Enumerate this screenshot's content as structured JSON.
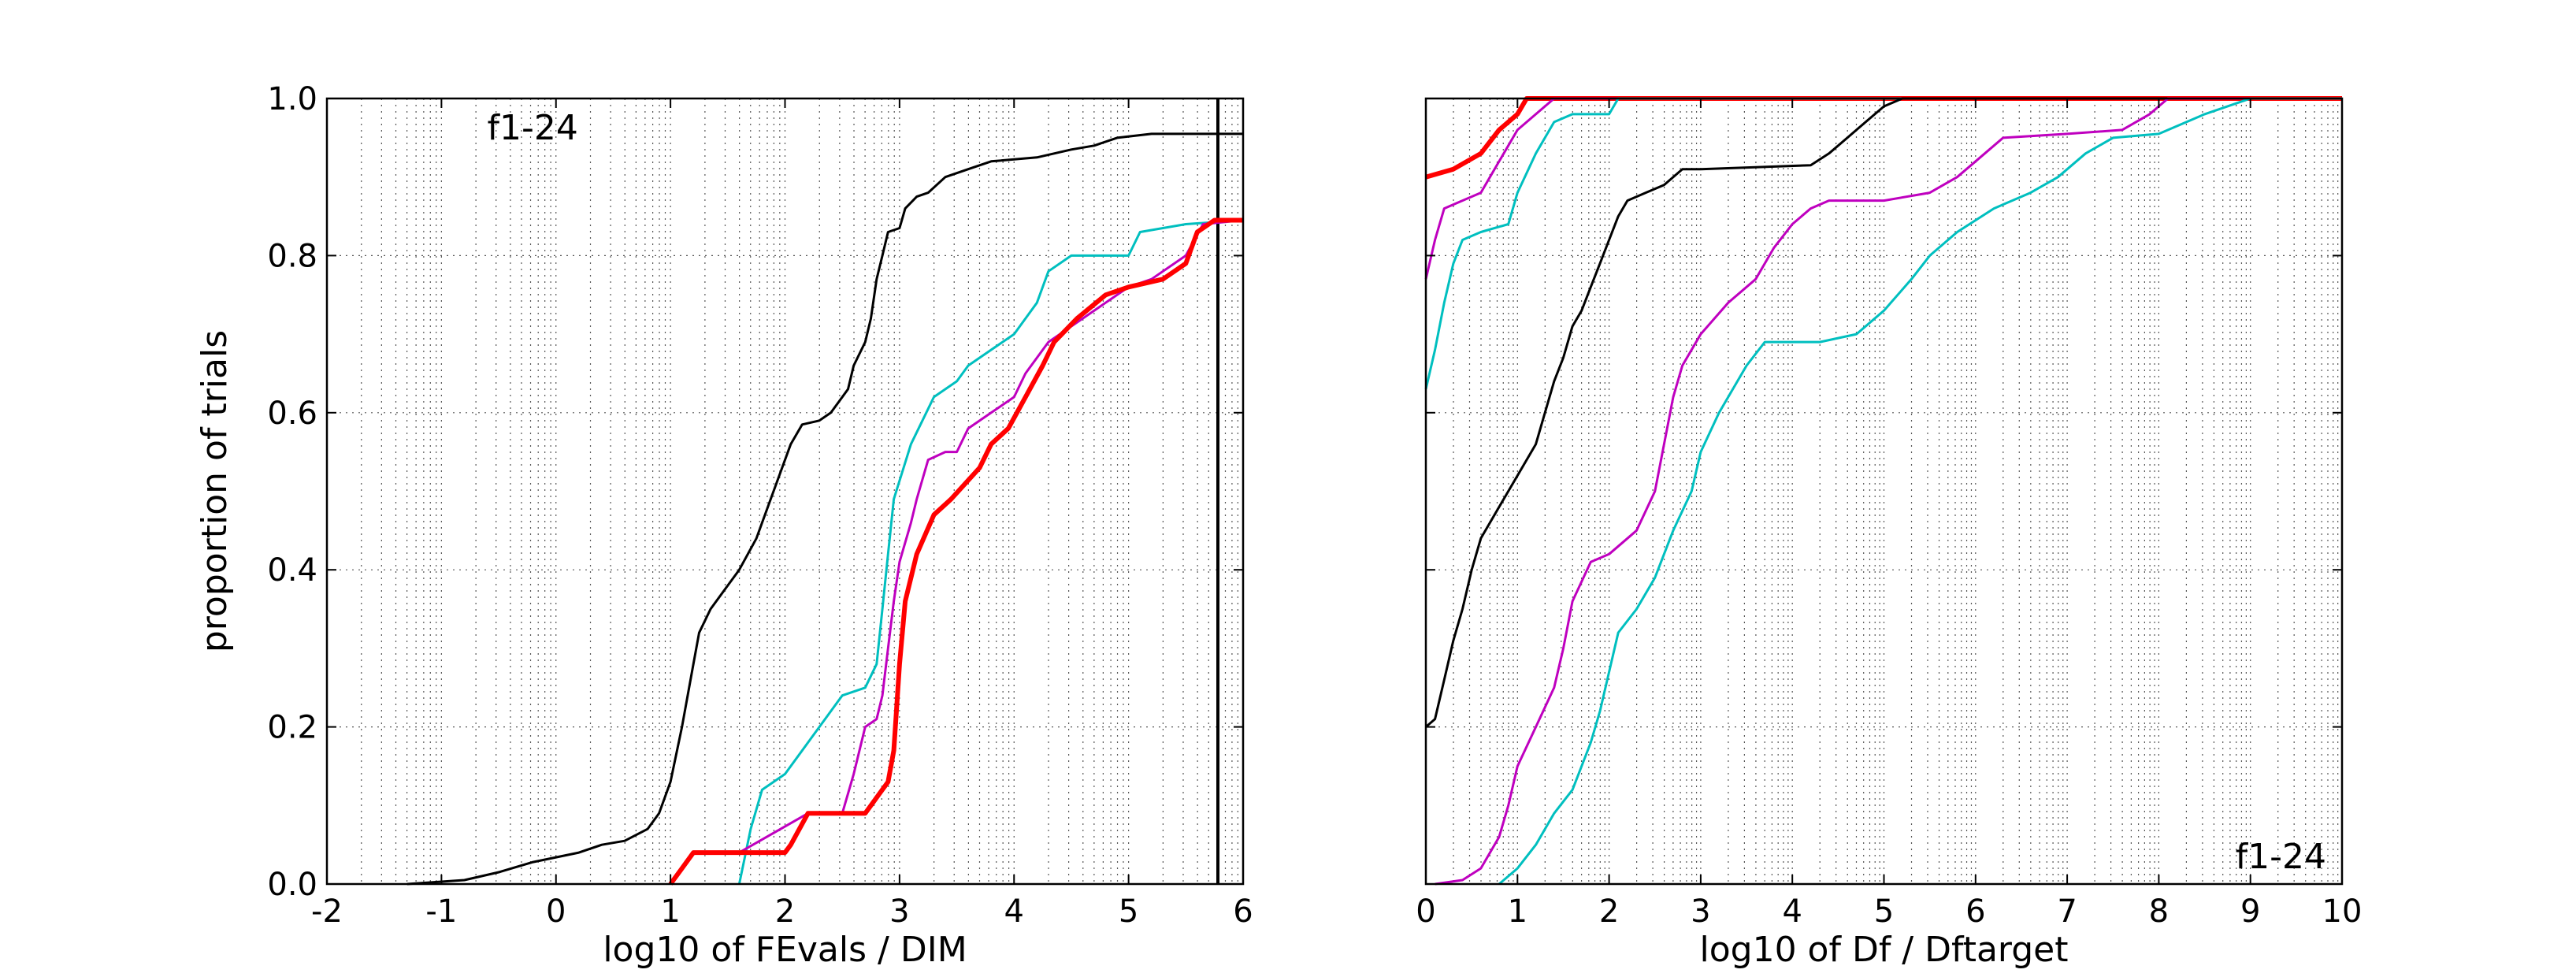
{
  "chart_data": [
    {
      "type": "line",
      "title": "",
      "annotation": "f1-24",
      "annotation_position": "top-center",
      "xlabel": "log10 of FEvals / DIM",
      "ylabel": "proportion of trials",
      "xlim": [
        -2,
        6
      ],
      "ylim": [
        0,
        1
      ],
      "xticks": [
        -2,
        -1,
        0,
        1,
        2,
        3,
        4,
        5,
        6
      ],
      "xtick_labels": [
        "-2",
        "-1",
        "0",
        "1",
        "2",
        "3",
        "4",
        "5",
        "6"
      ],
      "yticks": [
        0,
        0.2,
        0.4,
        0.6,
        0.8,
        1
      ],
      "ytick_labels": [
        "0.0",
        "0.2",
        "0.4",
        "0.6",
        "0.8",
        "1.0"
      ],
      "grid": true,
      "vertical_line": {
        "x": 5.78,
        "color": "#000000"
      },
      "series": [
        {
          "color": "#000000",
          "width": 3,
          "points": [
            [
              -1.3,
              0.0
            ],
            [
              -0.8,
              0.005
            ],
            [
              -0.5,
              0.015
            ],
            [
              -0.2,
              0.028
            ],
            [
              0.2,
              0.04
            ],
            [
              0.4,
              0.05
            ],
            [
              0.6,
              0.055
            ],
            [
              0.8,
              0.07
            ],
            [
              0.9,
              0.09
            ],
            [
              1.0,
              0.13
            ],
            [
              1.1,
              0.2
            ],
            [
              1.2,
              0.28
            ],
            [
              1.25,
              0.32
            ],
            [
              1.35,
              0.35
            ],
            [
              1.5,
              0.38
            ],
            [
              1.6,
              0.4
            ],
            [
              1.75,
              0.44
            ],
            [
              1.85,
              0.48
            ],
            [
              1.95,
              0.52
            ],
            [
              2.05,
              0.56
            ],
            [
              2.15,
              0.585
            ],
            [
              2.3,
              0.59
            ],
            [
              2.4,
              0.6
            ],
            [
              2.55,
              0.63
            ],
            [
              2.6,
              0.66
            ],
            [
              2.7,
              0.69
            ],
            [
              2.75,
              0.72
            ],
            [
              2.8,
              0.77
            ],
            [
              2.85,
              0.8
            ],
            [
              2.9,
              0.83
            ],
            [
              3.0,
              0.835
            ],
            [
              3.05,
              0.86
            ],
            [
              3.15,
              0.875
            ],
            [
              3.25,
              0.88
            ],
            [
              3.4,
              0.9
            ],
            [
              3.6,
              0.91
            ],
            [
              3.8,
              0.92
            ],
            [
              4.2,
              0.925
            ],
            [
              4.5,
              0.935
            ],
            [
              4.7,
              0.94
            ],
            [
              4.9,
              0.95
            ],
            [
              5.2,
              0.955
            ],
            [
              6.0,
              0.955
            ]
          ]
        },
        {
          "color": "#00bfbf",
          "width": 3,
          "points": [
            [
              1.6,
              0.0
            ],
            [
              1.7,
              0.07
            ],
            [
              1.8,
              0.12
            ],
            [
              1.9,
              0.13
            ],
            [
              2.0,
              0.14
            ],
            [
              2.2,
              0.18
            ],
            [
              2.35,
              0.21
            ],
            [
              2.5,
              0.24
            ],
            [
              2.7,
              0.25
            ],
            [
              2.8,
              0.28
            ],
            [
              2.85,
              0.35
            ],
            [
              2.9,
              0.42
            ],
            [
              2.95,
              0.49
            ],
            [
              3.1,
              0.56
            ],
            [
              3.3,
              0.62
            ],
            [
              3.5,
              0.64
            ],
            [
              3.6,
              0.66
            ],
            [
              3.8,
              0.68
            ],
            [
              4.0,
              0.7
            ],
            [
              4.2,
              0.74
            ],
            [
              4.3,
              0.78
            ],
            [
              4.5,
              0.8
            ],
            [
              5.0,
              0.8
            ],
            [
              5.1,
              0.83
            ],
            [
              5.5,
              0.84
            ],
            [
              6.0,
              0.845
            ]
          ]
        },
        {
          "color": "#bf00bf",
          "width": 3,
          "points": [
            [
              1.6,
              0.04
            ],
            [
              2.2,
              0.09
            ],
            [
              2.5,
              0.09
            ],
            [
              2.6,
              0.14
            ],
            [
              2.7,
              0.2
            ],
            [
              2.8,
              0.21
            ],
            [
              2.85,
              0.24
            ],
            [
              2.9,
              0.3
            ],
            [
              2.95,
              0.36
            ],
            [
              3.0,
              0.41
            ],
            [
              3.1,
              0.46
            ],
            [
              3.15,
              0.49
            ],
            [
              3.25,
              0.54
            ],
            [
              3.4,
              0.55
            ],
            [
              3.5,
              0.55
            ],
            [
              3.6,
              0.58
            ],
            [
              3.8,
              0.6
            ],
            [
              4.0,
              0.62
            ],
            [
              4.1,
              0.65
            ],
            [
              4.3,
              0.69
            ],
            [
              4.6,
              0.72
            ],
            [
              4.8,
              0.74
            ],
            [
              5.0,
              0.76
            ],
            [
              5.2,
              0.77
            ],
            [
              5.5,
              0.8
            ],
            [
              5.65,
              0.84
            ],
            [
              6.0,
              0.845
            ]
          ]
        },
        {
          "color": "#ff0000",
          "width": 6,
          "points": [
            [
              1.0,
              0.0
            ],
            [
              1.1,
              0.02
            ],
            [
              1.2,
              0.04
            ],
            [
              2.0,
              0.04
            ],
            [
              2.05,
              0.05
            ],
            [
              2.2,
              0.09
            ],
            [
              2.7,
              0.09
            ],
            [
              2.8,
              0.11
            ],
            [
              2.9,
              0.13
            ],
            [
              2.95,
              0.17
            ],
            [
              3.0,
              0.28
            ],
            [
              3.05,
              0.36
            ],
            [
              3.15,
              0.42
            ],
            [
              3.3,
              0.47
            ],
            [
              3.45,
              0.49
            ],
            [
              3.7,
              0.53
            ],
            [
              3.8,
              0.56
            ],
            [
              3.95,
              0.58
            ],
            [
              4.1,
              0.62
            ],
            [
              4.25,
              0.66
            ],
            [
              4.35,
              0.69
            ],
            [
              4.55,
              0.72
            ],
            [
              4.8,
              0.75
            ],
            [
              5.0,
              0.76
            ],
            [
              5.3,
              0.77
            ],
            [
              5.5,
              0.79
            ],
            [
              5.6,
              0.83
            ],
            [
              5.75,
              0.845
            ],
            [
              6.0,
              0.845
            ]
          ]
        }
      ]
    },
    {
      "type": "line",
      "title": "",
      "annotation": "f1-24",
      "annotation_position": "bottom-right",
      "xlabel": "log10 of Df / Dftarget",
      "ylabel": "",
      "xlim": [
        0,
        10
      ],
      "ylim": [
        0,
        1
      ],
      "xticks": [
        0,
        1,
        2,
        3,
        4,
        5,
        6,
        7,
        8,
        9,
        10
      ],
      "xtick_labels": [
        "0",
        "1",
        "2",
        "3",
        "4",
        "5",
        "6",
        "7",
        "8",
        "9",
        "10"
      ],
      "yticks": [
        0,
        0.2,
        0.4,
        0.6,
        0.8,
        1
      ],
      "ytick_labels": [],
      "grid": true,
      "series": [
        {
          "color": "#ff0000",
          "width": 6,
          "points": [
            [
              0,
              0.9
            ],
            [
              0.3,
              0.91
            ],
            [
              0.6,
              0.93
            ],
            [
              0.8,
              0.96
            ],
            [
              1.0,
              0.98
            ],
            [
              1.1,
              1.0
            ],
            [
              10,
              1.0
            ]
          ]
        },
        {
          "color": "#bf00bf",
          "width": 3,
          "points": [
            [
              0,
              0.77
            ],
            [
              0.1,
              0.82
            ],
            [
              0.2,
              0.86
            ],
            [
              0.4,
              0.87
            ],
            [
              0.6,
              0.88
            ],
            [
              0.8,
              0.92
            ],
            [
              1.0,
              0.96
            ],
            [
              1.2,
              0.98
            ],
            [
              1.4,
              1.0
            ],
            [
              10,
              1.0
            ]
          ]
        },
        {
          "color": "#00bfbf",
          "width": 3,
          "points": [
            [
              0,
              0.63
            ],
            [
              0.1,
              0.68
            ],
            [
              0.2,
              0.74
            ],
            [
              0.3,
              0.79
            ],
            [
              0.4,
              0.82
            ],
            [
              0.6,
              0.83
            ],
            [
              0.9,
              0.84
            ],
            [
              1.0,
              0.88
            ],
            [
              1.2,
              0.93
            ],
            [
              1.4,
              0.97
            ],
            [
              1.6,
              0.98
            ],
            [
              2.0,
              0.98
            ],
            [
              2.1,
              1.0
            ],
            [
              10,
              1.0
            ]
          ]
        },
        {
          "color": "#000000",
          "width": 3,
          "points": [
            [
              0,
              0.2
            ],
            [
              0.1,
              0.21
            ],
            [
              0.2,
              0.26
            ],
            [
              0.3,
              0.31
            ],
            [
              0.4,
              0.35
            ],
            [
              0.5,
              0.4
            ],
            [
              0.6,
              0.44
            ],
            [
              0.8,
              0.48
            ],
            [
              1.0,
              0.52
            ],
            [
              1.2,
              0.56
            ],
            [
              1.3,
              0.6
            ],
            [
              1.4,
              0.64
            ],
            [
              1.5,
              0.67
            ],
            [
              1.6,
              0.71
            ],
            [
              1.7,
              0.73
            ],
            [
              1.8,
              0.76
            ],
            [
              1.9,
              0.79
            ],
            [
              2.0,
              0.82
            ],
            [
              2.1,
              0.85
            ],
            [
              2.2,
              0.87
            ],
            [
              2.4,
              0.88
            ],
            [
              2.6,
              0.89
            ],
            [
              2.8,
              0.91
            ],
            [
              3.0,
              0.91
            ],
            [
              4.2,
              0.915
            ],
            [
              4.4,
              0.93
            ],
            [
              4.6,
              0.95
            ],
            [
              4.8,
              0.97
            ],
            [
              5.0,
              0.99
            ],
            [
              5.2,
              1.0
            ],
            [
              10,
              1.0
            ]
          ]
        },
        {
          "color": "#bf00bf",
          "width": 3,
          "points": [
            [
              0.1,
              0.0
            ],
            [
              0.4,
              0.005
            ],
            [
              0.6,
              0.02
            ],
            [
              0.8,
              0.06
            ],
            [
              0.9,
              0.1
            ],
            [
              1.0,
              0.15
            ],
            [
              1.2,
              0.2
            ],
            [
              1.4,
              0.25
            ],
            [
              1.5,
              0.3
            ],
            [
              1.6,
              0.36
            ],
            [
              1.8,
              0.41
            ],
            [
              2.0,
              0.42
            ],
            [
              2.3,
              0.45
            ],
            [
              2.5,
              0.5
            ],
            [
              2.6,
              0.56
            ],
            [
              2.7,
              0.62
            ],
            [
              2.8,
              0.66
            ],
            [
              3.0,
              0.7
            ],
            [
              3.3,
              0.74
            ],
            [
              3.6,
              0.77
            ],
            [
              3.8,
              0.81
            ],
            [
              4.0,
              0.84
            ],
            [
              4.2,
              0.86
            ],
            [
              4.4,
              0.87
            ],
            [
              5.0,
              0.87
            ],
            [
              5.5,
              0.88
            ],
            [
              5.8,
              0.9
            ],
            [
              6.0,
              0.92
            ],
            [
              6.3,
              0.95
            ],
            [
              7.0,
              0.955
            ],
            [
              7.6,
              0.96
            ],
            [
              7.9,
              0.98
            ],
            [
              8.1,
              1.0
            ],
            [
              10,
              1.0
            ]
          ]
        },
        {
          "color": "#00bfbf",
          "width": 3,
          "points": [
            [
              0.8,
              0.0
            ],
            [
              1.0,
              0.02
            ],
            [
              1.2,
              0.05
            ],
            [
              1.4,
              0.09
            ],
            [
              1.6,
              0.12
            ],
            [
              1.8,
              0.18
            ],
            [
              1.9,
              0.22
            ],
            [
              2.0,
              0.27
            ],
            [
              2.1,
              0.32
            ],
            [
              2.3,
              0.35
            ],
            [
              2.5,
              0.39
            ],
            [
              2.7,
              0.45
            ],
            [
              2.9,
              0.5
            ],
            [
              3.0,
              0.55
            ],
            [
              3.2,
              0.6
            ],
            [
              3.5,
              0.66
            ],
            [
              3.7,
              0.69
            ],
            [
              4.3,
              0.69
            ],
            [
              4.7,
              0.7
            ],
            [
              5.0,
              0.73
            ],
            [
              5.3,
              0.77
            ],
            [
              5.5,
              0.8
            ],
            [
              5.8,
              0.83
            ],
            [
              6.2,
              0.86
            ],
            [
              6.6,
              0.88
            ],
            [
              6.9,
              0.9
            ],
            [
              7.2,
              0.93
            ],
            [
              7.5,
              0.95
            ],
            [
              8.0,
              0.955
            ],
            [
              8.5,
              0.98
            ],
            [
              9.0,
              1.0
            ],
            [
              10,
              1.0
            ]
          ]
        }
      ]
    }
  ]
}
